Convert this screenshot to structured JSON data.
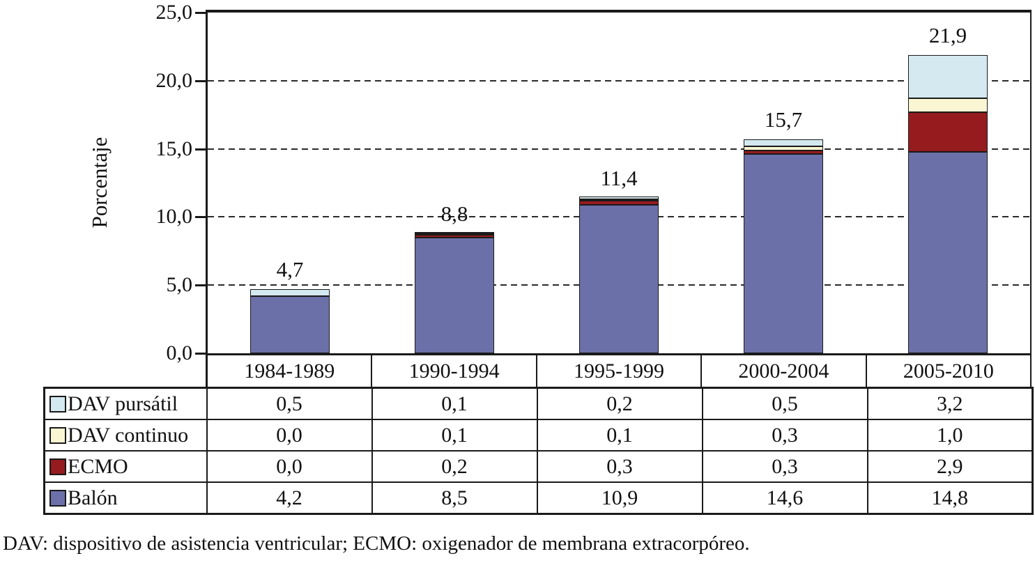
{
  "chart_data": {
    "type": "bar",
    "subtype": "stacked-vertical",
    "title": "",
    "ylabel": "Porcentaje",
    "xlabel": "",
    "ylim": [
      0,
      25
    ],
    "y_tick_step": 5,
    "y_ticks": [
      "25,0",
      "20,0",
      "15,0",
      "10,0",
      "5,0",
      "0,0"
    ],
    "grid": "horizontal-dashed-at-5-10-15-20",
    "legend_position": "table-left-column",
    "categories": [
      "1984-1989",
      "1990-1994",
      "1995-1999",
      "2000-2004",
      "2005-2010"
    ],
    "series": [
      {
        "name": "DAV pursátil",
        "color": "#D5E9F1",
        "values": [
          0.5,
          0.1,
          0.2,
          0.5,
          3.2
        ],
        "display": [
          "0,5",
          "0,1",
          "0,2",
          "0,5",
          "3,2"
        ]
      },
      {
        "name": "DAV continuo",
        "color": "#FAF6D3",
        "values": [
          0.0,
          0.1,
          0.1,
          0.3,
          1.0
        ],
        "display": [
          "0,0",
          "0,1",
          "0,1",
          "0,3",
          "1,0"
        ]
      },
      {
        "name": "ECMO",
        "color": "#951B1E",
        "values": [
          0.0,
          0.2,
          0.3,
          0.3,
          2.9
        ],
        "display": [
          "0,0",
          "0,2",
          "0,3",
          "0,3",
          "2,9"
        ]
      },
      {
        "name": "Balón",
        "color": "#6C70A8",
        "values": [
          4.2,
          8.5,
          10.9,
          14.6,
          14.8
        ],
        "display": [
          "4,2",
          "8,5",
          "10,9",
          "14,6",
          "14,8"
        ]
      }
    ],
    "stack_order_bottom_to_top": [
      "Balón",
      "ECMO",
      "DAV continuo",
      "DAV pursátil"
    ],
    "totals_display": [
      "4,7",
      "8,8",
      "11,4",
      "15,7",
      "21,9"
    ],
    "totals": [
      4.7,
      8.8,
      11.4,
      15.7,
      21.9
    ]
  },
  "colors": {
    "axis": "#1A1A1A",
    "background": "#FFFFFF",
    "text": "#111111"
  },
  "footnote": "DAV: dispositivo de asistencia ventricular; ECMO: oxigenador de membrana extracorpóreo."
}
